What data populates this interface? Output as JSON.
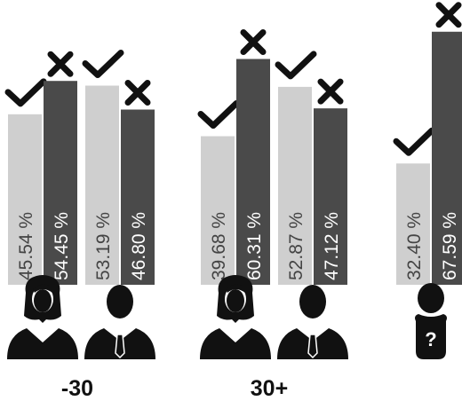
{
  "colors": {
    "accepted": "#cfcfcf",
    "rejected": "#4a4a4a",
    "label_on_light": "#444444",
    "label_on_dark": "#ffffff",
    "icon": "#111111"
  },
  "icons": {
    "accepted": "check-icon",
    "rejected": "cross-icon",
    "female": "woman-icon",
    "male": "man-icon",
    "unknown": "unknown-person-icon"
  },
  "chart_data": {
    "type": "bar",
    "title": "",
    "xlabel": "",
    "ylabel": "",
    "ylim": [
      0,
      70
    ],
    "groups": [
      {
        "label": "-30",
        "subgroups": [
          {
            "gender": "female",
            "values": [
              45.54,
              54.45
            ],
            "labels": [
              "45.54 %",
              "54.45 %"
            ]
          },
          {
            "gender": "male",
            "values": [
              53.19,
              46.8
            ],
            "labels": [
              "53.19 %",
              "46.80 %"
            ]
          }
        ]
      },
      {
        "label": "30+",
        "subgroups": [
          {
            "gender": "female",
            "values": [
              39.68,
              60.31
            ],
            "labels": [
              "39.68 %",
              "60.31 %"
            ]
          },
          {
            "gender": "male",
            "values": [
              52.87,
              47.12
            ],
            "labels": [
              "52.87 %",
              "47.12 %"
            ]
          }
        ]
      },
      {
        "label": "",
        "subgroups": [
          {
            "gender": "unknown",
            "values": [
              32.4,
              67.59
            ],
            "labels": [
              "32.40 %",
              "67.59 %"
            ]
          }
        ]
      }
    ]
  }
}
